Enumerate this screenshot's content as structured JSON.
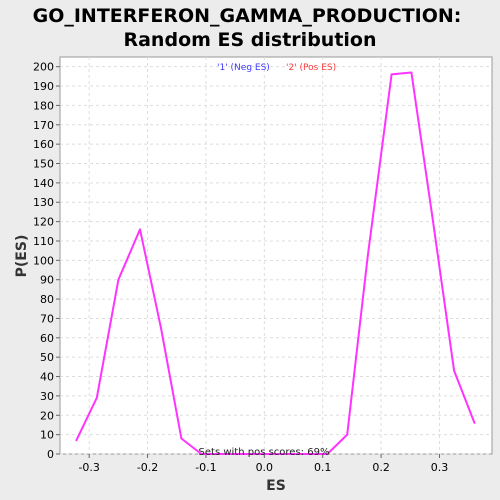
{
  "chart_data": {
    "type": "line",
    "title_line1": "GO_INTERFERON_GAMMA_PRODUCTION:",
    "title_line2": "Random ES distribution",
    "xlabel": "ES",
    "ylabel": "P(ES)",
    "xlim": [
      -0.35,
      0.39
    ],
    "ylim": [
      0,
      205
    ],
    "x_ticks": [
      -0.3,
      -0.2,
      -0.1,
      0.0,
      0.1,
      0.2,
      0.3
    ],
    "x_tick_labels": [
      "-0.3",
      "-0.2",
      "-0.1",
      "0.0",
      "0.1",
      "0.2",
      "0.3"
    ],
    "y_ticks": [
      0,
      10,
      20,
      30,
      40,
      50,
      60,
      70,
      80,
      90,
      100,
      110,
      120,
      130,
      140,
      150,
      160,
      170,
      180,
      190,
      200
    ],
    "grid": true,
    "legend": {
      "position": "top-center",
      "entries": [
        {
          "label": "'1' (Neg ES)",
          "color": "#3a3aff"
        },
        {
          "label": "'2' (Pos ES)",
          "color": "#ff3a3a"
        }
      ]
    },
    "annotation": "Sets with pos scores: 69%",
    "series": [
      {
        "color": "#ff33ff",
        "points": [
          [
            -0.322,
            7
          ],
          [
            -0.287,
            29
          ],
          [
            -0.25,
            90
          ],
          [
            -0.213,
            116
          ],
          [
            -0.177,
            65
          ],
          [
            -0.142,
            8
          ],
          [
            -0.108,
            0
          ],
          [
            -0.07,
            0
          ],
          [
            -0.035,
            0
          ],
          [
            0.0,
            0
          ],
          [
            0.035,
            0
          ],
          [
            0.07,
            0
          ],
          [
            0.108,
            0
          ],
          [
            0.142,
            10
          ],
          [
            0.177,
            102
          ],
          [
            0.218,
            196
          ],
          [
            0.252,
            197
          ],
          [
            0.288,
            122
          ],
          [
            0.325,
            43
          ],
          [
            0.36,
            16
          ]
        ]
      }
    ]
  }
}
